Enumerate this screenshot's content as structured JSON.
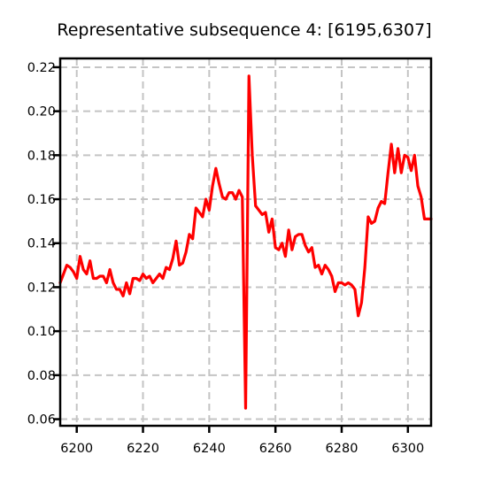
{
  "chart_data": {
    "type": "line",
    "title": "Representative subsequence 4: [6195,6307]",
    "xlabel": "",
    "ylabel": "",
    "xlim": [
      6195,
      6307
    ],
    "ylim": [
      0.057,
      0.224
    ],
    "grid": true,
    "x_ticks": [
      6200,
      6220,
      6240,
      6260,
      6280,
      6300
    ],
    "y_ticks": [
      0.06,
      0.08,
      0.1,
      0.12,
      0.14,
      0.16,
      0.18,
      0.2,
      0.22
    ],
    "x_tick_labels": [
      "6200",
      "6220",
      "6240",
      "6260",
      "6280",
      "6300"
    ],
    "y_tick_labels": [
      "0.06",
      "0.08",
      "0.10",
      "0.12",
      "0.14",
      "0.16",
      "0.18",
      "0.20",
      "0.22"
    ],
    "series": [
      {
        "color": "#ff0000",
        "x": [
          6195,
          6196,
          6197,
          6198,
          6199,
          6200,
          6201,
          6202,
          6203,
          6204,
          6205,
          6206,
          6207,
          6208,
          6209,
          6210,
          6211,
          6212,
          6213,
          6214,
          6215,
          6216,
          6217,
          6218,
          6219,
          6220,
          6221,
          6222,
          6223,
          6224,
          6225,
          6226,
          6227,
          6228,
          6229,
          6230,
          6231,
          6232,
          6233,
          6234,
          6235,
          6236,
          6237,
          6238,
          6239,
          6240,
          6241,
          6242,
          6243,
          6244,
          6245,
          6246,
          6247,
          6248,
          6249,
          6250,
          6251,
          6252,
          6253,
          6254,
          6255,
          6256,
          6257,
          6258,
          6259,
          6260,
          6261,
          6262,
          6263,
          6264,
          6265,
          6266,
          6267,
          6268,
          6269,
          6270,
          6271,
          6272,
          6273,
          6274,
          6275,
          6276,
          6277,
          6278,
          6279,
          6280,
          6281,
          6282,
          6283,
          6284,
          6285,
          6286,
          6287,
          6288,
          6289,
          6290,
          6291,
          6292,
          6293,
          6294,
          6295,
          6296,
          6297,
          6298,
          6299,
          6300,
          6301,
          6302,
          6303,
          6304,
          6305,
          6306,
          6307
        ],
        "y": [
          0.122,
          0.126,
          0.13,
          0.129,
          0.127,
          0.124,
          0.134,
          0.128,
          0.126,
          0.132,
          0.124,
          0.124,
          0.125,
          0.125,
          0.122,
          0.128,
          0.122,
          0.119,
          0.119,
          0.116,
          0.122,
          0.117,
          0.124,
          0.124,
          0.123,
          0.126,
          0.124,
          0.125,
          0.122,
          0.124,
          0.126,
          0.124,
          0.129,
          0.128,
          0.133,
          0.141,
          0.13,
          0.131,
          0.136,
          0.144,
          0.142,
          0.156,
          0.154,
          0.152,
          0.16,
          0.155,
          0.166,
          0.174,
          0.167,
          0.161,
          0.16,
          0.163,
          0.163,
          0.16,
          0.164,
          0.161,
          0.065,
          0.216,
          0.18,
          0.157,
          0.155,
          0.153,
          0.154,
          0.145,
          0.151,
          0.138,
          0.137,
          0.14,
          0.134,
          0.146,
          0.137,
          0.143,
          0.144,
          0.144,
          0.139,
          0.136,
          0.138,
          0.129,
          0.13,
          0.126,
          0.13,
          0.128,
          0.125,
          0.118,
          0.122,
          0.122,
          0.121,
          0.122,
          0.121,
          0.119,
          0.107,
          0.113,
          0.129,
          0.152,
          0.149,
          0.15,
          0.156,
          0.159,
          0.158,
          0.172,
          0.185,
          0.172,
          0.183,
          0.172,
          0.18,
          0.179,
          0.173,
          0.18,
          0.166,
          0.161,
          0.151,
          0.151,
          0.151
        ]
      }
    ]
  }
}
